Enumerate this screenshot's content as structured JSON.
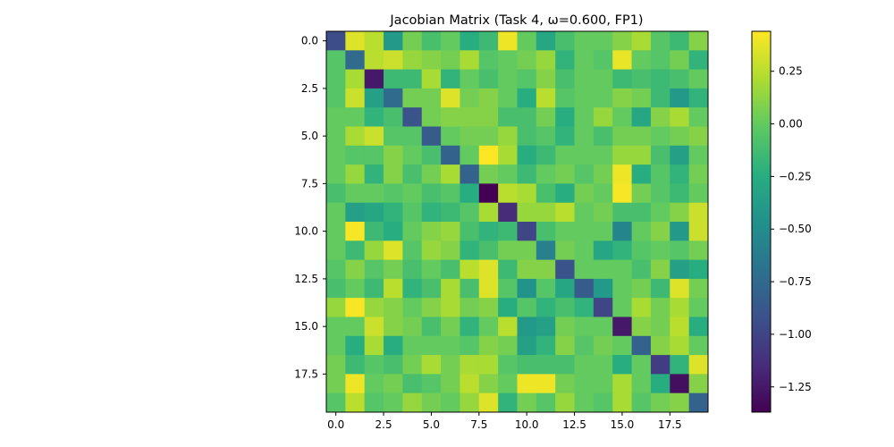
{
  "chart_data": {
    "type": "heatmap",
    "title": "Jacobian Matrix (Task 4, ω=0.600, FP1)",
    "xlabel": "",
    "ylabel": "",
    "rows": 20,
    "cols": 20,
    "xlim": [
      -0.5,
      19.5
    ],
    "ylim": [
      19.5,
      -0.5
    ],
    "x_ticks": [
      "0.0",
      "2.5",
      "5.0",
      "7.5",
      "10.0",
      "12.5",
      "15.0",
      "17.5"
    ],
    "y_ticks": [
      "0.0",
      "2.5",
      "5.0",
      "7.5",
      "10.0",
      "12.5",
      "15.0",
      "17.5"
    ],
    "x_tick_values": [
      0,
      2.5,
      5,
      7.5,
      10,
      12.5,
      15,
      17.5
    ],
    "y_tick_values": [
      0,
      2.5,
      5,
      7.5,
      10,
      12.5,
      15,
      17.5
    ],
    "colormap": "viridis",
    "vmin": -1.37,
    "vmax": 0.44,
    "colorbar_ticks": [
      "0.25",
      "0.00",
      "−0.25",
      "−0.50",
      "−0.75",
      "−1.00",
      "−1.25"
    ],
    "colorbar_tick_values": [
      0.25,
      0.0,
      -0.25,
      -0.5,
      -0.75,
      -1.0,
      -1.25
    ],
    "grid": false,
    "values": [
      [
        -0.95,
        0.35,
        0.25,
        -0.4,
        0.05,
        -0.1,
        0.0,
        -0.25,
        -0.15,
        0.4,
        0.0,
        -0.3,
        -0.1,
        0.0,
        0.0,
        0.1,
        0.2,
        -0.05,
        -0.15,
        0.1
      ],
      [
        -0.05,
        -0.75,
        0.25,
        0.3,
        0.15,
        0.1,
        0.05,
        0.2,
        -0.05,
        0.0,
        0.05,
        0.15,
        -0.2,
        0.0,
        -0.05,
        0.38,
        0.0,
        -0.05,
        0.05,
        -0.2
      ],
      [
        -0.05,
        0.2,
        -1.25,
        -0.15,
        -0.15,
        0.2,
        -0.2,
        0.0,
        -0.1,
        0.0,
        -0.05,
        0.1,
        -0.1,
        0.0,
        0.0,
        -0.15,
        -0.1,
        -0.15,
        -0.1,
        0.0
      ],
      [
        -0.05,
        0.3,
        -0.35,
        -0.75,
        0.05,
        0.05,
        0.35,
        0.05,
        0.1,
        0.0,
        -0.25,
        0.25,
        -0.05,
        0.0,
        0.0,
        0.1,
        0.05,
        -0.15,
        -0.4,
        -0.2
      ],
      [
        0.0,
        0.0,
        -0.2,
        -0.1,
        -0.9,
        0.05,
        0.1,
        0.1,
        0.1,
        -0.1,
        -0.1,
        0.05,
        -0.25,
        0.0,
        0.15,
        0.0,
        -0.3,
        0.1,
        0.2,
        0.0
      ],
      [
        0.0,
        0.2,
        0.3,
        -0.05,
        -0.05,
        -0.85,
        0.0,
        0.05,
        0.05,
        0.15,
        -0.1,
        -0.05,
        -0.2,
        0.0,
        -0.1,
        0.05,
        0.05,
        0.0,
        0.05,
        0.1
      ],
      [
        0.0,
        -0.05,
        -0.05,
        0.1,
        0.0,
        -0.1,
        -0.8,
        0.0,
        0.45,
        0.2,
        -0.25,
        -0.15,
        0.0,
        0.0,
        0.0,
        0.15,
        0.15,
        -0.1,
        -0.35,
        0.0
      ],
      [
        0.0,
        0.15,
        -0.2,
        0.1,
        -0.1,
        0.05,
        0.2,
        -0.8,
        0.05,
        0.0,
        -0.15,
        0.0,
        0.05,
        -0.05,
        0.05,
        0.4,
        -0.25,
        -0.05,
        -0.2,
        0.05
      ],
      [
        -0.1,
        0.0,
        0.0,
        -0.05,
        0.0,
        -0.1,
        -0.05,
        -0.25,
        -1.37,
        0.25,
        0.2,
        -0.1,
        -0.25,
        0.05,
        0.0,
        0.42,
        0.05,
        -0.05,
        -0.15,
        0.0
      ],
      [
        0.0,
        -0.35,
        -0.3,
        -0.2,
        -0.05,
        -0.2,
        -0.15,
        -0.05,
        0.2,
        -1.15,
        0.15,
        0.15,
        0.25,
        0.0,
        0.05,
        -0.1,
        -0.1,
        0.0,
        0.1,
        0.3
      ],
      [
        0.0,
        0.42,
        -0.15,
        -0.25,
        0.0,
        0.1,
        0.15,
        -0.1,
        -0.2,
        -0.15,
        -1.0,
        -0.1,
        0.0,
        0.0,
        0.0,
        -0.55,
        0.0,
        0.1,
        -0.4,
        0.3
      ],
      [
        0.0,
        -0.15,
        0.15,
        0.35,
        -0.05,
        0.15,
        0.1,
        -0.2,
        -0.1,
        0.05,
        0.05,
        -0.6,
        0.05,
        0.0,
        -0.3,
        -0.2,
        -0.05,
        0.0,
        -0.05,
        0.05
      ],
      [
        -0.05,
        0.1,
        -0.05,
        0.05,
        -0.1,
        0.0,
        -0.1,
        0.25,
        0.35,
        -0.15,
        0.1,
        0.1,
        -0.9,
        0.0,
        0.0,
        0.0,
        -0.1,
        0.1,
        -0.35,
        -0.25
      ],
      [
        -0.1,
        0.0,
        -0.15,
        0.25,
        -0.2,
        -0.1,
        0.2,
        -0.1,
        0.35,
        -0.05,
        -0.45,
        -0.05,
        -0.3,
        -0.85,
        -0.4,
        0.0,
        0.05,
        -0.15,
        0.35,
        0.05
      ],
      [
        0.15,
        0.42,
        0.15,
        0.1,
        0.0,
        0.1,
        0.2,
        0.05,
        0.1,
        -0.25,
        -0.05,
        -0.2,
        -0.1,
        -0.2,
        -1.0,
        0.0,
        0.2,
        0.05,
        0.2,
        0.0
      ],
      [
        0.0,
        0.0,
        0.3,
        0.1,
        0.05,
        -0.1,
        0.05,
        -0.2,
        0.0,
        0.25,
        -0.4,
        -0.35,
        0.05,
        0.0,
        0.0,
        -1.25,
        0.1,
        0.05,
        0.25,
        -0.25
      ],
      [
        0.0,
        -0.25,
        0.2,
        -0.25,
        0.0,
        0.0,
        0.0,
        -0.05,
        0.1,
        0.05,
        -0.35,
        -0.2,
        0.1,
        -0.05,
        0.05,
        0.0,
        -0.8,
        0.1,
        0.2,
        0.0
      ],
      [
        0.05,
        -0.15,
        -0.05,
        -0.1,
        0.05,
        0.2,
        0.05,
        0.2,
        0.2,
        -0.05,
        -0.1,
        -0.1,
        -0.1,
        0.0,
        0.0,
        -0.25,
        0.0,
        -1.05,
        -0.2,
        0.35
      ],
      [
        0.05,
        0.4,
        0.0,
        0.05,
        -0.1,
        -0.05,
        0.05,
        0.25,
        0.1,
        0.0,
        0.4,
        0.4,
        0.05,
        0.0,
        0.0,
        0.2,
        0.0,
        -0.25,
        -1.3,
        0.1
      ],
      [
        -0.05,
        0.25,
        -0.05,
        0.0,
        0.15,
        0.05,
        0.0,
        0.15,
        0.35,
        -0.2,
        0.05,
        -0.05,
        0.15,
        0.0,
        -0.05,
        0.2,
        -0.05,
        0.05,
        0.1,
        -0.8
      ]
    ]
  }
}
